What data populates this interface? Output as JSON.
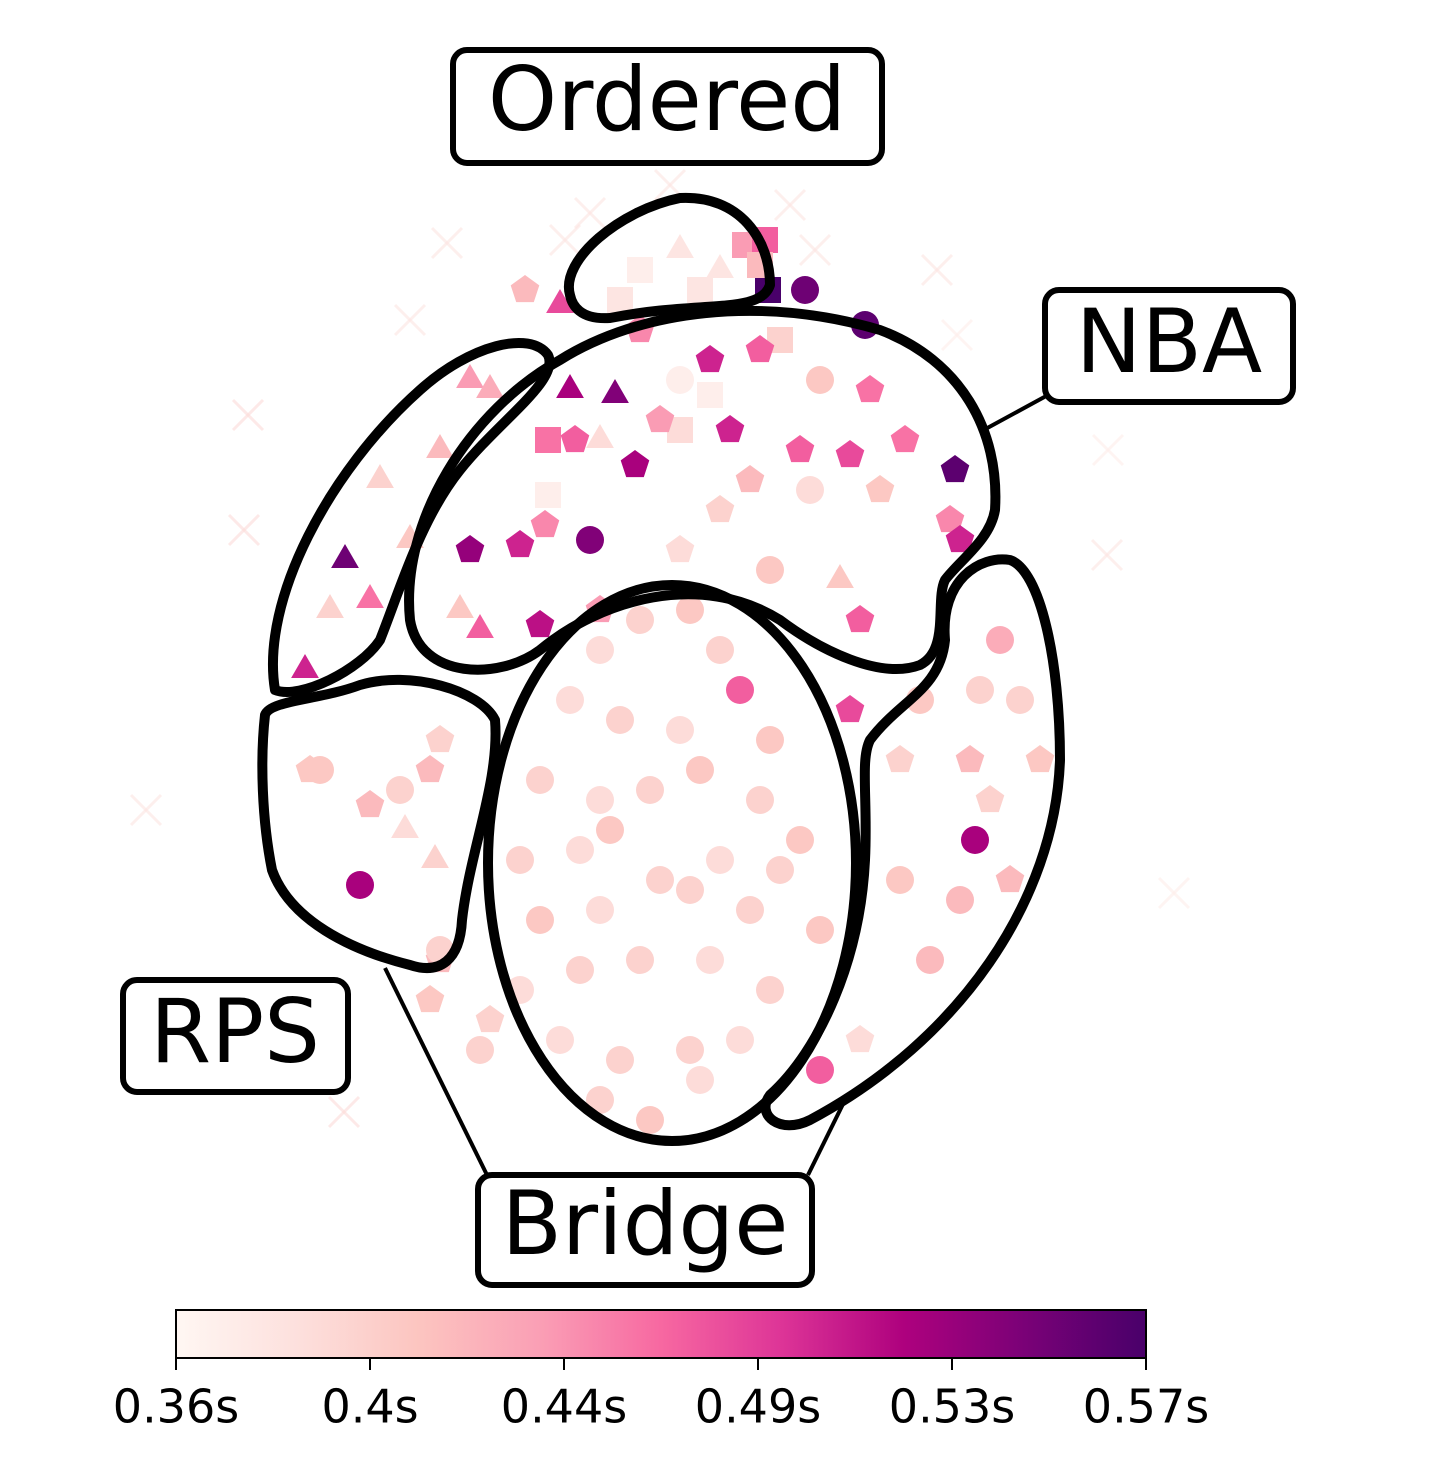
{
  "chart_data": {
    "type": "scatter",
    "xlim": [
      0,
      115
    ],
    "ylim": [
      0,
      99
    ],
    "series": [
      {
        "marker": "x",
        "x": [
          34.7,
          31,
          14.8,
          14.4,
          4.6,
          24.4,
          107.4,
          100.7,
          100.8,
          85.7,
          83.7,
          69,
          49,
          46.5,
          57,
          71.5
        ],
        "y": [
          91.7,
          84,
          74.5,
          63,
          35,
          4.8,
          26.7,
          60.5,
          71,
          82.5,
          89,
          95.5,
          94.7,
          92,
          97.5,
          91
        ],
        "values": [
          0.38,
          0.38,
          0.39,
          0.39,
          0.38,
          0.39,
          0.37,
          0.38,
          0.37,
          0.37,
          0.38,
          0.38,
          0.38,
          0.38,
          0.38,
          0.38
        ]
      },
      {
        "marker": "square",
        "x": [
          54,
          60,
          64.5,
          66.5,
          66.8,
          68,
          61,
          58,
          44.8,
          44.8,
          66,
          52
        ],
        "y": [
          89,
          87,
          91.5,
          92,
          87,
          82,
          76.5,
          73,
          66.5,
          72,
          89.5,
          86
        ],
        "values": [
          0.37,
          0.38,
          0.44,
          0.47,
          0.57,
          0.4,
          0.37,
          0.39,
          0.37,
          0.46,
          0.42,
          0.38
        ]
      },
      {
        "marker": "triangle",
        "x": [
          37,
          39,
          51.5,
          47,
          46,
          24.5,
          27,
          20.5,
          28,
          31,
          23,
          36,
          38,
          74,
          50,
          62,
          58,
          34,
          30.5,
          33.5
        ],
        "y": [
          78,
          77,
          76.5,
          77,
          85.5,
          60,
          56,
          49,
          68,
          62,
          55,
          55,
          53,
          58,
          72,
          89,
          91,
          71,
          33,
          30
        ],
        "values": [
          0.44,
          0.43,
          0.54,
          0.52,
          0.48,
          0.55,
          0.46,
          0.5,
          0.4,
          0.41,
          0.4,
          0.41,
          0.47,
          0.41,
          0.39,
          0.38,
          0.38,
          0.42,
          0.39,
          0.4
        ]
      },
      {
        "marker": "pentagon",
        "x": [
          54,
          61,
          66,
          77,
          80.5,
          75,
          70,
          63,
          56,
          53.5,
          47.5,
          44.5,
          37,
          42,
          44,
          50,
          58,
          65,
          76,
          85.5,
          62,
          78,
          85,
          86,
          75,
          87,
          94,
          89,
          80,
          27,
          21,
          34,
          33,
          39,
          34,
          76,
          42.5,
          33,
          91
        ],
        "y": [
          83,
          80,
          81,
          77,
          72,
          70.5,
          71,
          73,
          74,
          69.5,
          72,
          63.5,
          61,
          61.5,
          53.5,
          55,
          61,
          68,
          54,
          69,
          65,
          67,
          64,
          62,
          45,
          40,
          40,
          36,
          40,
          35.5,
          39,
          42,
          16,
          14,
          20,
          12,
          87,
          39,
          28
        ],
        "values": [
          0.45,
          0.5,
          0.47,
          0.46,
          0.46,
          0.48,
          0.47,
          0.5,
          0.44,
          0.52,
          0.47,
          0.45,
          0.53,
          0.5,
          0.51,
          0.44,
          0.39,
          0.42,
          0.47,
          0.56,
          0.4,
          0.41,
          0.45,
          0.5,
          0.48,
          0.42,
          0.41,
          0.4,
          0.4,
          0.42,
          0.41,
          0.4,
          0.41,
          0.4,
          0.42,
          0.39,
          0.42,
          0.42,
          0.42
        ]
      },
      {
        "marker": "circle",
        "x": [
          50,
          54,
          59,
          62,
          47,
          52,
          58,
          64,
          67,
          44,
          50,
          55,
          60,
          66,
          70,
          42,
          48,
          51,
          56,
          62,
          68,
          44,
          50,
          59,
          65,
          72,
          42,
          48,
          54,
          61,
          67,
          46,
          52,
          59,
          64,
          50,
          55,
          60,
          34,
          38,
          30,
          22,
          82,
          88,
          92,
          90,
          80,
          86,
          83,
          72,
          87.5,
          26,
          49,
          70.5,
          76.5,
          58,
          72,
          71,
          67
        ],
        "y": [
          51,
          54,
          55,
          51,
          46,
          44,
          43,
          47,
          42,
          38,
          36,
          37,
          39,
          36,
          32,
          30,
          31,
          33,
          28,
          30,
          29,
          24,
          25,
          27,
          25,
          23,
          17,
          19,
          20,
          20,
          17,
          12,
          10,
          11,
          12,
          6,
          4,
          8,
          21,
          11,
          37,
          39,
          46,
          47,
          46,
          52,
          28,
          26,
          20,
          9,
          32,
          27.5,
          62,
          87,
          83.5,
          78,
          78,
          67,
          59
        ],
        "values": [
          0.39,
          0.4,
          0.41,
          0.4,
          0.39,
          0.4,
          0.39,
          0.47,
          0.41,
          0.4,
          0.39,
          0.4,
          0.41,
          0.4,
          0.41,
          0.4,
          0.39,
          0.41,
          0.4,
          0.39,
          0.4,
          0.41,
          0.39,
          0.4,
          0.4,
          0.41,
          0.39,
          0.4,
          0.4,
          0.39,
          0.4,
          0.39,
          0.4,
          0.4,
          0.39,
          0.4,
          0.41,
          0.39,
          0.4,
          0.4,
          0.4,
          0.41,
          0.41,
          0.4,
          0.4,
          0.43,
          0.41,
          0.42,
          0.42,
          0.47,
          0.52,
          0.52,
          0.54,
          0.55,
          0.56,
          0.37,
          0.41,
          0.39,
          0.41
        ]
      }
    ],
    "annotations": [
      "Ordered",
      "NBA",
      "RPS",
      "Bridge"
    ],
    "colorbar": {
      "cmap": "RdPu",
      "lim": [
        0.36,
        0.57
      ],
      "ticks": [
        {
          "value": 0.36,
          "label": "0.36s"
        },
        {
          "value": 0.402,
          "label": "0.4s"
        },
        {
          "value": 0.444,
          "label": "0.44s"
        },
        {
          "value": 0.486,
          "label": "0.49s"
        },
        {
          "value": 0.528,
          "label": "0.53s"
        },
        {
          "value": 0.57,
          "label": "0.57s"
        }
      ]
    }
  }
}
